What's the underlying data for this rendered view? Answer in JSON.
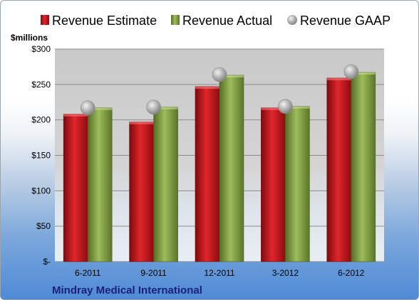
{
  "chart_data": {
    "type": "bar",
    "unit_label": "$millions",
    "categories": [
      "6-2011",
      "9-2011",
      "12-2011",
      "3-2012",
      "6-2012"
    ],
    "y_ticks": [
      "$-",
      "$50",
      "$100",
      "$150",
      "$200",
      "$250",
      "$300"
    ],
    "ylim": [
      0,
      300
    ],
    "grid": true,
    "legend_position": "top",
    "series": [
      {
        "name": "Revenue Estimate",
        "kind": "bar",
        "color": "#c0141a",
        "values": [
          208,
          197,
          247,
          217,
          259
        ]
      },
      {
        "name": "Revenue Actual",
        "kind": "bar",
        "color": "#7a9a3c",
        "values": [
          217,
          218,
          263,
          219,
          267
        ]
      },
      {
        "name": "Revenue GAAP",
        "kind": "marker",
        "color": "#a8a8a8",
        "values": [
          217,
          218,
          264,
          219,
          268
        ]
      }
    ],
    "footer": "Mindray Medical International"
  }
}
